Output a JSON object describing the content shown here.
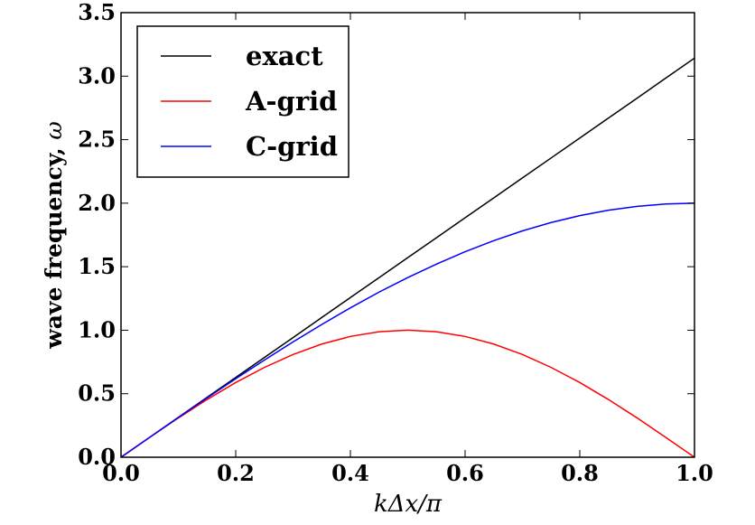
{
  "chart_data": {
    "type": "line",
    "xlabel": "kΔx/π",
    "ylabel_text": "wave frequency, ",
    "ylabel_symbol": "ω",
    "xlim": [
      0.0,
      1.0
    ],
    "ylim": [
      0.0,
      3.5
    ],
    "xticks": [
      "0.0",
      "0.2",
      "0.4",
      "0.6",
      "0.8",
      "1.0"
    ],
    "yticks": [
      "0.0",
      "0.5",
      "1.0",
      "1.5",
      "2.0",
      "2.5",
      "3.0",
      "3.5"
    ],
    "legend_position": "upper-left",
    "grid": false,
    "x": [
      0.0,
      0.05,
      0.1,
      0.15,
      0.2,
      0.25,
      0.3,
      0.35,
      0.4,
      0.45,
      0.5,
      0.55,
      0.6,
      0.65,
      0.7,
      0.75,
      0.8,
      0.85,
      0.9,
      0.95,
      1.0
    ],
    "series": [
      {
        "name": "exact",
        "color": "#000000",
        "values": [
          0.0,
          0.157,
          0.314,
          0.471,
          0.628,
          0.785,
          0.942,
          1.1,
          1.257,
          1.414,
          1.571,
          1.728,
          1.885,
          2.042,
          2.199,
          2.356,
          2.513,
          2.67,
          2.827,
          2.985,
          3.142
        ]
      },
      {
        "name": "A-grid",
        "color": "#ff0000",
        "values": [
          0.0,
          0.156,
          0.309,
          0.454,
          0.588,
          0.707,
          0.809,
          0.891,
          0.951,
          0.988,
          1.0,
          0.988,
          0.951,
          0.891,
          0.809,
          0.707,
          0.588,
          0.454,
          0.309,
          0.156,
          0.0
        ]
      },
      {
        "name": "C-grid",
        "color": "#0000ff",
        "values": [
          0.0,
          0.157,
          0.313,
          0.467,
          0.618,
          0.765,
          0.908,
          1.045,
          1.176,
          1.3,
          1.414,
          1.52,
          1.618,
          1.705,
          1.782,
          1.848,
          1.902,
          1.945,
          1.975,
          1.994,
          2.0
        ]
      }
    ]
  }
}
